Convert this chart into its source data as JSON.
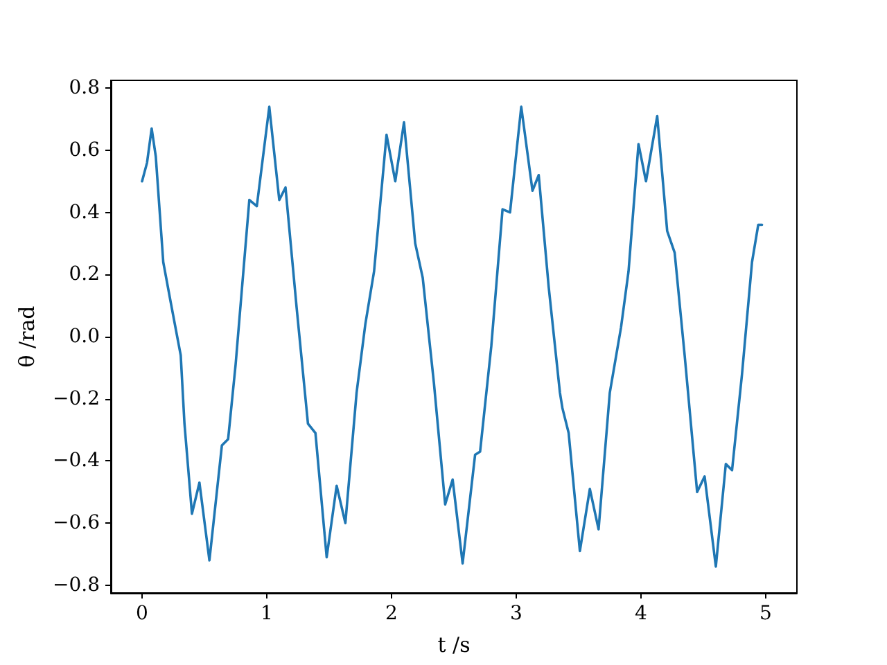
{
  "chart_data": {
    "type": "line",
    "xlabel": "t /s",
    "ylabel": "θ /rad",
    "xlim": [
      -0.25,
      5.25
    ],
    "ylim": [
      -0.825,
      0.825
    ],
    "xticks": [
      0,
      1,
      2,
      3,
      4,
      5
    ],
    "yticks": [
      {
        "value": -0.8,
        "label": "−0.8"
      },
      {
        "value": -0.6,
        "label": "−0.6"
      },
      {
        "value": -0.4,
        "label": "−0.4"
      },
      {
        "value": -0.2,
        "label": "−0.2"
      },
      {
        "value": 0,
        "label": "0.0"
      },
      0.2,
      0.4,
      0.6,
      0.8
    ],
    "grid": false,
    "marker": "none",
    "line_style": "solid",
    "series": [
      {
        "color": "#1f77b4",
        "x": [
          0,
          0.04,
          0.077,
          0.11,
          0.17,
          0.23,
          0.31,
          0.34,
          0.4,
          0.46,
          0.54,
          0.64,
          0.69,
          0.75,
          0.86,
          0.92,
          1.02,
          1.1,
          1.15,
          1.24,
          1.33,
          1.39,
          1.48,
          1.56,
          1.63,
          1.72,
          1.79,
          1.86,
          1.96,
          2.03,
          2.1,
          2.19,
          2.25,
          2.34,
          2.43,
          2.49,
          2.57,
          2.67,
          2.71,
          2.8,
          2.89,
          2.95,
          3.04,
          3.13,
          3.18,
          3.26,
          3.35,
          3.37,
          3.42,
          3.51,
          3.59,
          3.66,
          3.75,
          3.84,
          3.9,
          3.98,
          4.04,
          4.13,
          4.21,
          4.27,
          4.35,
          4.45,
          4.51,
          4.6,
          4.68,
          4.73,
          4.81,
          4.89,
          4.94,
          4.97
        ],
        "values": [
          0.5,
          0.56,
          0.67,
          0.58,
          0.24,
          0.11,
          -0.06,
          -0.28,
          -0.57,
          -0.47,
          -0.72,
          -0.35,
          -0.33,
          -0.09,
          0.44,
          0.42,
          0.74,
          0.44,
          0.48,
          0.09,
          -0.28,
          -0.31,
          -0.71,
          -0.48,
          -0.6,
          -0.18,
          0.04,
          0.21,
          0.65,
          0.5,
          0.69,
          0.3,
          0.19,
          -0.15,
          -0.54,
          -0.46,
          -0.73,
          -0.38,
          -0.37,
          -0.03,
          0.41,
          0.4,
          0.74,
          0.47,
          0.52,
          0.16,
          -0.18,
          -0.23,
          -0.31,
          -0.69,
          -0.49,
          -0.62,
          -0.18,
          0.03,
          0.21,
          0.62,
          0.5,
          0.71,
          0.34,
          0.27,
          -0.06,
          -0.5,
          -0.45,
          -0.74,
          -0.41,
          -0.43,
          -0.12,
          0.24,
          0.36,
          0.36
        ]
      }
    ]
  }
}
